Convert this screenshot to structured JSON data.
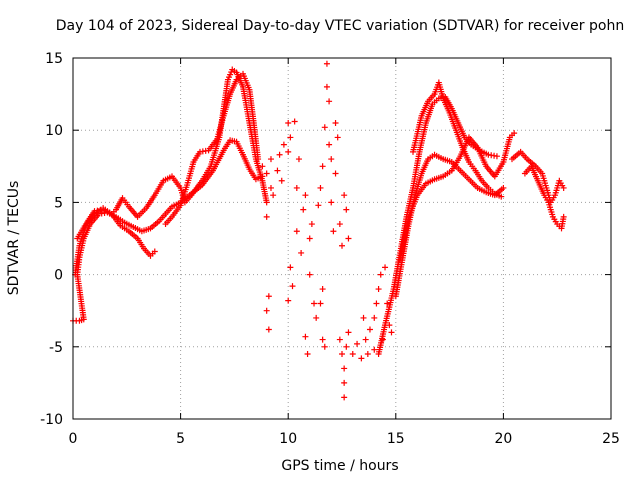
{
  "chart_data": {
    "type": "scatter",
    "title": "Day 104 of 2023, Sidereal Day-to-day VTEC variation (SDTVAR) for receiver pohn",
    "xlabel": "GPS time / hours",
    "ylabel": "SDTVAR / TECUs",
    "xlim": [
      0,
      25
    ],
    "ylim": [
      -10,
      15
    ],
    "xticks": [
      0,
      5,
      10,
      15,
      20,
      25
    ],
    "yticks": [
      -10,
      -5,
      0,
      5,
      10,
      15
    ],
    "grid": true,
    "marker": "+",
    "color": "#ff0000",
    "series": [
      {
        "name": "track-1",
        "points": [
          [
            0.0,
            -3.2
          ],
          [
            0.3,
            -3.2
          ],
          [
            0.5,
            -3.1
          ],
          [
            0.2,
            0.0
          ],
          [
            0.3,
            1.2
          ],
          [
            0.5,
            2.5
          ],
          [
            0.8,
            3.5
          ],
          [
            1.2,
            4.2
          ],
          [
            1.6,
            4.3
          ],
          [
            2.0,
            4.0
          ],
          [
            2.4,
            3.6
          ],
          [
            2.8,
            3.3
          ],
          [
            3.2,
            3.0
          ],
          [
            3.6,
            3.2
          ],
          [
            4.0,
            3.7
          ],
          [
            4.3,
            4.2
          ],
          [
            4.6,
            4.7
          ],
          [
            5.0,
            5.0
          ],
          [
            5.5,
            5.6
          ],
          [
            6.0,
            6.2
          ],
          [
            6.5,
            7.2
          ],
          [
            7.0,
            8.6
          ],
          [
            7.3,
            9.3
          ],
          [
            7.6,
            9.2
          ],
          [
            7.9,
            8.3
          ],
          [
            8.2,
            7.3
          ],
          [
            8.5,
            6.6
          ],
          [
            8.8,
            6.8
          ]
        ]
      },
      {
        "name": "track-2",
        "points": [
          [
            0.1,
            0.0
          ],
          [
            0.3,
            2.0
          ],
          [
            0.6,
            3.4
          ],
          [
            1.0,
            4.2
          ],
          [
            1.4,
            4.6
          ],
          [
            1.8,
            4.2
          ],
          [
            2.2,
            3.4
          ],
          [
            2.6,
            3.0
          ],
          [
            3.0,
            2.5
          ],
          [
            3.3,
            1.8
          ],
          [
            3.6,
            1.3
          ],
          [
            3.8,
            1.6
          ]
        ]
      },
      {
        "name": "track-3",
        "points": [
          [
            0.2,
            2.5
          ],
          [
            0.6,
            3.5
          ],
          [
            1.0,
            4.4
          ],
          [
            1.4,
            4.5
          ],
          [
            1.8,
            4.2
          ],
          [
            2.0,
            4.5
          ],
          [
            2.3,
            5.3
          ],
          [
            2.6,
            4.7
          ],
          [
            3.0,
            4.0
          ],
          [
            3.4,
            4.6
          ],
          [
            3.8,
            5.5
          ],
          [
            4.2,
            6.5
          ],
          [
            4.6,
            6.8
          ],
          [
            5.0,
            6.0
          ],
          [
            5.2,
            5.0
          ],
          [
            5.5,
            5.5
          ],
          [
            6.0,
            6.5
          ],
          [
            6.4,
            7.5
          ],
          [
            6.8,
            9.5
          ],
          [
            7.0,
            11.5
          ],
          [
            7.2,
            13.5
          ],
          [
            7.4,
            14.2
          ],
          [
            7.6,
            14.0
          ],
          [
            7.9,
            13.0
          ],
          [
            8.2,
            10.5
          ],
          [
            8.5,
            8.0
          ],
          [
            8.8,
            6.5
          ],
          [
            9.0,
            5.0
          ]
        ]
      },
      {
        "name": "track-4",
        "points": [
          [
            4.3,
            3.5
          ],
          [
            4.6,
            4.0
          ],
          [
            5.0,
            4.8
          ],
          [
            5.3,
            6.2
          ],
          [
            5.6,
            7.8
          ],
          [
            5.9,
            8.5
          ],
          [
            6.3,
            8.6
          ],
          [
            6.7,
            9.4
          ],
          [
            7.0,
            11.0
          ],
          [
            7.3,
            12.5
          ],
          [
            7.6,
            13.5
          ],
          [
            7.9,
            13.9
          ],
          [
            8.2,
            12.8
          ],
          [
            8.4,
            10.5
          ],
          [
            8.6,
            8.0
          ]
        ]
      },
      {
        "name": "track-5",
        "points": [
          [
            14.2,
            -5.5
          ],
          [
            14.5,
            -3.5
          ],
          [
            14.9,
            -1.0
          ],
          [
            15.2,
            1.5
          ],
          [
            15.5,
            4.0
          ],
          [
            15.8,
            6.0
          ],
          [
            16.1,
            8.5
          ],
          [
            16.4,
            10.5
          ],
          [
            16.7,
            11.8
          ],
          [
            17.0,
            12.2
          ],
          [
            17.3,
            12.3
          ],
          [
            17.6,
            11.5
          ],
          [
            17.9,
            10.5
          ],
          [
            18.2,
            9.5
          ],
          [
            18.5,
            9.0
          ],
          [
            18.9,
            8.6
          ],
          [
            19.3,
            8.3
          ],
          [
            19.7,
            8.2
          ]
        ]
      },
      {
        "name": "track-6",
        "points": [
          [
            15.0,
            -1.5
          ],
          [
            15.3,
            1.0
          ],
          [
            15.6,
            3.5
          ],
          [
            15.9,
            5.5
          ],
          [
            16.2,
            7.0
          ],
          [
            16.5,
            8.0
          ],
          [
            16.8,
            8.3
          ],
          [
            17.2,
            8.0
          ],
          [
            17.6,
            7.8
          ],
          [
            18.0,
            7.2
          ],
          [
            18.4,
            6.6
          ],
          [
            18.8,
            6.0
          ],
          [
            19.2,
            5.7
          ],
          [
            19.6,
            5.5
          ],
          [
            20.0,
            6.0
          ]
        ]
      },
      {
        "name": "track-7",
        "points": [
          [
            15.2,
            1.0
          ],
          [
            15.6,
            4.0
          ],
          [
            16.0,
            5.5
          ],
          [
            16.4,
            6.3
          ],
          [
            16.8,
            6.6
          ],
          [
            17.2,
            6.8
          ],
          [
            17.6,
            7.2
          ],
          [
            18.0,
            8.2
          ],
          [
            18.4,
            9.5
          ],
          [
            18.8,
            8.8
          ],
          [
            19.2,
            7.5
          ],
          [
            19.6,
            6.8
          ],
          [
            20.0,
            7.8
          ],
          [
            20.3,
            9.5
          ],
          [
            20.5,
            9.8
          ]
        ]
      },
      {
        "name": "track-8",
        "points": [
          [
            15.8,
            8.5
          ],
          [
            16.2,
            11.0
          ],
          [
            16.5,
            12.0
          ],
          [
            16.8,
            12.5
          ],
          [
            17.0,
            13.3
          ],
          [
            17.2,
            12.2
          ],
          [
            17.5,
            11.2
          ],
          [
            17.8,
            10.0
          ],
          [
            18.1,
            8.8
          ],
          [
            18.4,
            7.8
          ],
          [
            18.7,
            7.2
          ],
          [
            19.0,
            6.5
          ],
          [
            19.3,
            6.0
          ],
          [
            19.6,
            5.6
          ],
          [
            19.9,
            5.4
          ]
        ]
      },
      {
        "name": "track-9",
        "points": [
          [
            20.4,
            8.0
          ],
          [
            20.8,
            8.5
          ],
          [
            21.1,
            8.0
          ],
          [
            21.5,
            7.5
          ],
          [
            21.8,
            7.0
          ],
          [
            22.0,
            6.0
          ],
          [
            22.2,
            5.0
          ],
          [
            22.4,
            5.5
          ],
          [
            22.6,
            6.5
          ],
          [
            22.8,
            6.0
          ]
        ]
      },
      {
        "name": "track-10",
        "points": [
          [
            21.0,
            7.0
          ],
          [
            21.3,
            7.5
          ],
          [
            21.6,
            6.5
          ],
          [
            21.9,
            5.5
          ],
          [
            22.1,
            5.0
          ],
          [
            22.3,
            4.0
          ],
          [
            22.5,
            3.5
          ],
          [
            22.7,
            3.2
          ],
          [
            22.8,
            4.0
          ]
        ]
      },
      {
        "name": "scatter-noise",
        "points": [
          [
            8.8,
            7.5
          ],
          [
            9.0,
            7.0
          ],
          [
            9.0,
            4.0
          ],
          [
            9.2,
            6.0
          ],
          [
            9.2,
            8.0
          ],
          [
            9.3,
            5.5
          ],
          [
            9.5,
            7.2
          ],
          [
            9.6,
            8.3
          ],
          [
            9.7,
            6.5
          ],
          [
            9.8,
            9.0
          ],
          [
            10.0,
            8.5
          ],
          [
            10.0,
            10.5
          ],
          [
            10.1,
            9.5
          ],
          [
            10.3,
            10.6
          ],
          [
            10.4,
            6.0
          ],
          [
            10.5,
            8.0
          ],
          [
            9.1,
            -1.5
          ],
          [
            9.1,
            -3.8
          ],
          [
            9.0,
            -2.5
          ],
          [
            10.0,
            -1.8
          ],
          [
            10.1,
            0.5
          ],
          [
            10.2,
            -0.8
          ],
          [
            10.4,
            3.0
          ],
          [
            10.6,
            1.5
          ],
          [
            10.7,
            4.5
          ],
          [
            10.8,
            5.5
          ],
          [
            11.0,
            0.0
          ],
          [
            11.0,
            2.5
          ],
          [
            11.1,
            3.5
          ],
          [
            11.2,
            -2.0
          ],
          [
            11.3,
            -3.0
          ],
          [
            10.8,
            -4.3
          ],
          [
            10.9,
            -5.5
          ],
          [
            11.4,
            4.8
          ],
          [
            11.5,
            6.0
          ],
          [
            11.6,
            7.5
          ],
          [
            11.7,
            10.2
          ],
          [
            11.8,
            13.0
          ],
          [
            11.8,
            14.6
          ],
          [
            11.9,
            12.0
          ],
          [
            11.9,
            9.0
          ],
          [
            12.0,
            8.0
          ],
          [
            12.0,
            5.0
          ],
          [
            12.1,
            3.0
          ],
          [
            11.5,
            -2.0
          ],
          [
            11.6,
            -1.0
          ],
          [
            11.6,
            -4.5
          ],
          [
            11.7,
            -5.0
          ],
          [
            12.2,
            7.0
          ],
          [
            12.3,
            9.5
          ],
          [
            12.2,
            10.5
          ],
          [
            12.4,
            3.5
          ],
          [
            12.5,
            2.0
          ],
          [
            12.6,
            5.5
          ],
          [
            12.7,
            4.5
          ],
          [
            12.8,
            2.5
          ],
          [
            12.4,
            -4.5
          ],
          [
            12.5,
            -5.5
          ],
          [
            12.6,
            -6.5
          ],
          [
            12.6,
            -7.5
          ],
          [
            12.6,
            -8.5
          ],
          [
            12.7,
            -5.0
          ],
          [
            12.8,
            -4.0
          ],
          [
            13.0,
            -5.5
          ],
          [
            13.2,
            -4.8
          ],
          [
            13.4,
            -5.8
          ],
          [
            13.6,
            -4.5
          ],
          [
            13.8,
            -3.8
          ],
          [
            14.0,
            -3.0
          ],
          [
            14.1,
            -2.0
          ],
          [
            14.2,
            -1.0
          ],
          [
            14.3,
            0.0
          ],
          [
            14.5,
            0.5
          ],
          [
            14.6,
            -2.0
          ],
          [
            14.7,
            -3.5
          ],
          [
            14.8,
            -4.0
          ],
          [
            13.5,
            -3.0
          ],
          [
            13.7,
            -5.5
          ],
          [
            14.0,
            -5.2
          ],
          [
            14.4,
            -4.5
          ]
        ]
      }
    ]
  }
}
